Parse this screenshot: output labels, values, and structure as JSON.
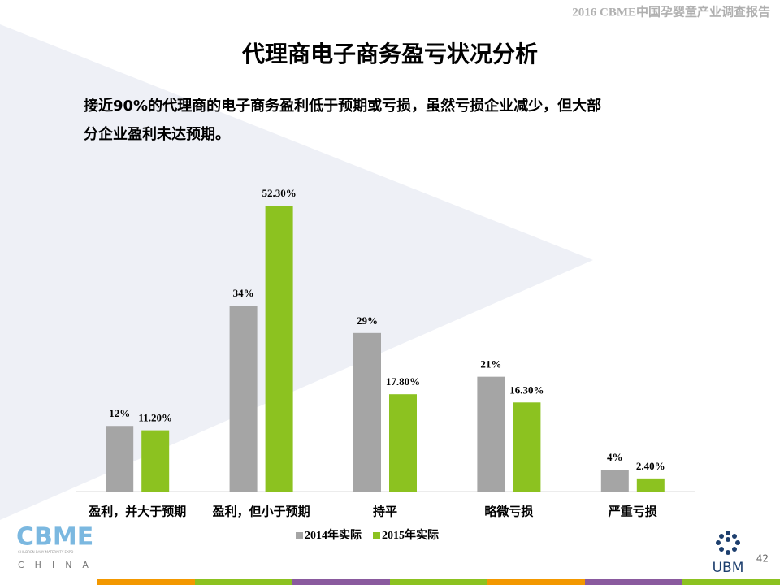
{
  "header": {
    "report_title": "2016 CBME中国孕婴童产业调查报告"
  },
  "slide": {
    "title": "代理商电子商务盈亏状况分析",
    "subtitle_lines": [
      "接近90%的代理商的电子商务盈利低于预期或亏损，虽然亏损企业减少，但大部",
      "分企业盈利未达预期。"
    ],
    "page_number": "42"
  },
  "logos": {
    "cbme": "CBME",
    "cbme_tagline": "CHILDREN·BABY·MATERNITY EXPO",
    "cbme_region": "CHINA",
    "ubm": "UBM"
  },
  "chart_data": {
    "type": "bar",
    "categories": [
      "盈利，并大于预期",
      "盈利，但小于预期",
      "持平",
      "略微亏损",
      "严重亏损"
    ],
    "series": [
      {
        "name": "2014年实际",
        "color": "#a5a5a5",
        "values": [
          12,
          34,
          29,
          21,
          4
        ],
        "value_labels": [
          "12%",
          "34%",
          "29%",
          "21%",
          "4%"
        ]
      },
      {
        "name": "2015年实际",
        "color": "#8cc220",
        "values": [
          11.2,
          52.3,
          17.8,
          16.3,
          2.4
        ],
        "value_labels": [
          "11.20%",
          "52.30%",
          "17.80%",
          "16.30%",
          "2.40%"
        ]
      }
    ],
    "legend": "bottom"
  }
}
